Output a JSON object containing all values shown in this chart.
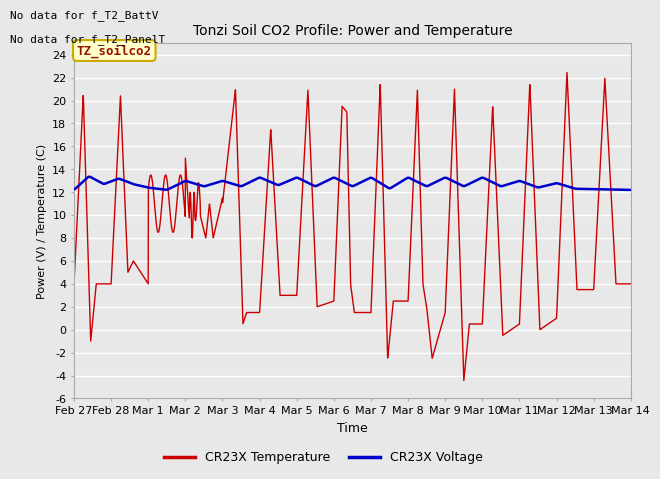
{
  "title": "Tonzi Soil CO2 Profile: Power and Temperature",
  "xlabel": "Time",
  "ylabel": "Power (V) / Temperature (C)",
  "ylim": [
    -6,
    25
  ],
  "yticks": [
    -6,
    -4,
    -2,
    0,
    2,
    4,
    6,
    8,
    10,
    12,
    14,
    16,
    18,
    20,
    22,
    24
  ],
  "no_data_text1": "No data for f_T2_BattV",
  "no_data_text2": "No data for f_T2_PanelT",
  "legend_label1": "TZ_soilco2",
  "legend_label2": "CR23X Temperature",
  "legend_label3": "CR23X Voltage",
  "legend_box_facecolor": "#ffffcc",
  "legend_box_edgecolor": "#ccaa00",
  "temp_color": "#cc0000",
  "volt_color": "#0000cc",
  "plot_bg_color": "#e8e8e8",
  "fig_bg_color": "#e8e8e8",
  "grid_color": "#ffffff",
  "xlim_start": 0,
  "xlim_end": 15,
  "xtick_labels": [
    "Feb 27",
    "Feb 28",
    "Mar 1",
    "Mar 2",
    "Mar 3",
    "Mar 4",
    "Mar 5",
    "Mar 6",
    "Mar 7",
    "Mar 8",
    "Mar 9",
    "Mar 10",
    "Mar 11",
    "Mar 12",
    "Mar 13",
    "Mar 14"
  ],
  "xtick_positions": [
    0,
    1,
    2,
    3,
    4,
    5,
    6,
    7,
    8,
    9,
    10,
    11,
    12,
    13,
    14,
    15
  ]
}
